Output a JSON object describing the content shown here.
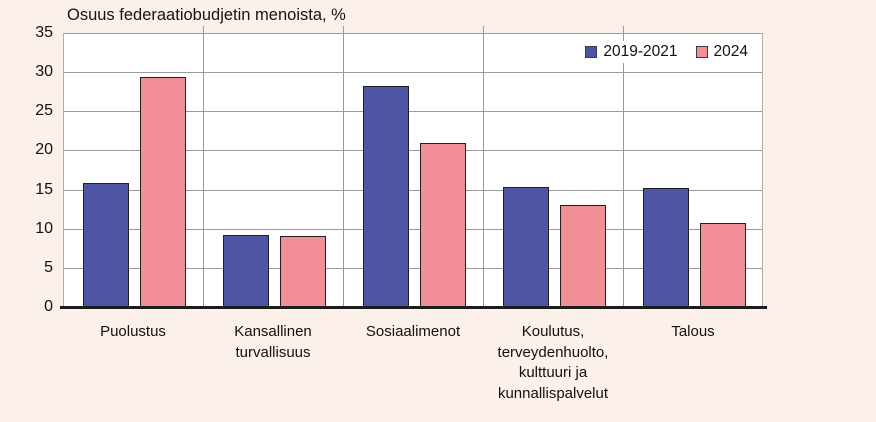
{
  "title": "Osuus federaatiobudjetin menoista, %",
  "colors": {
    "background": "#FCF0EB",
    "plot_background": "#FFFFFF",
    "gridline": "#9A9A9A",
    "axis_line": "#1C1C1C",
    "bar_border": "#1F1F1F",
    "series_2019_2021": "#4D55A4",
    "series_2024": "#F38E96",
    "text": "#111111"
  },
  "legend": [
    {
      "label": "2019-2021",
      "color": "#4D55A4"
    },
    {
      "label": "2024",
      "color": "#F38E96"
    }
  ],
  "chart_data": {
    "type": "bar",
    "title": "Osuus federaatiobudjetin menoista, %",
    "categories": [
      "Puolustus",
      "Kansallinen\nturvallisuus",
      "Sosiaalimenot",
      "Koulutus,\nterveydenhuolto,\nkulttuuri ja\nkunnallispalvelut",
      "Talous"
    ],
    "series": [
      {
        "name": "2019-2021",
        "color": "#4D55A4",
        "values": [
          15.8,
          9.2,
          28.2,
          15.3,
          15.2
        ]
      },
      {
        "name": "2024",
        "color": "#F38E96",
        "values": [
          29.4,
          9.1,
          21.0,
          13.0,
          10.7
        ]
      }
    ],
    "ylabel": "",
    "xlabel": "",
    "ylim": [
      0,
      35
    ],
    "yticks": [
      0,
      5,
      10,
      15,
      20,
      25,
      30,
      35
    ],
    "grid": true,
    "category_separators": true,
    "legend_position": "top-right"
  }
}
